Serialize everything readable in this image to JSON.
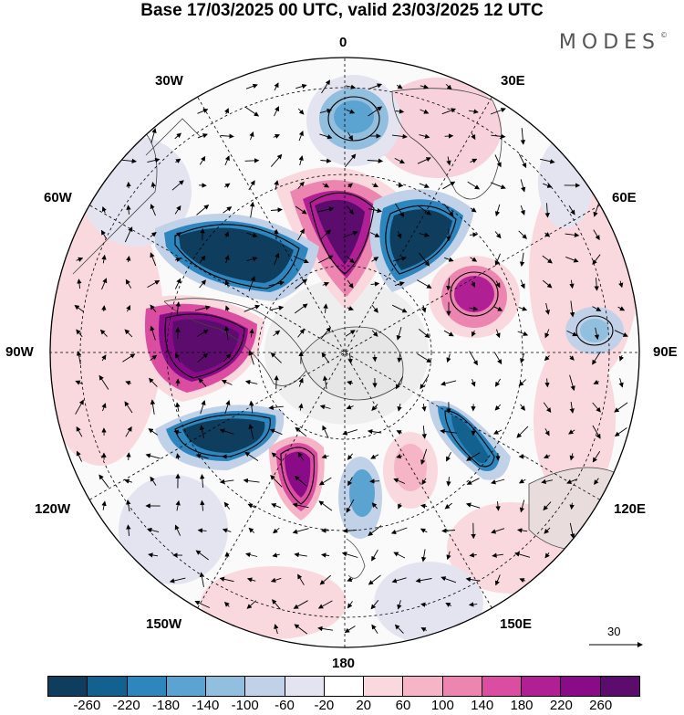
{
  "title": "Base 17/03/2025 00 UTC, valid 23/03/2025 12 UTC",
  "brand": {
    "name": "MODES",
    "mark": "©"
  },
  "longitude_labels": {
    "north": "0",
    "n30w": "30W",
    "n30e": "30E",
    "n60w": "60W",
    "n60e": "60E",
    "west": "90W",
    "east": "90E",
    "n120w": "120W",
    "n120e": "120E",
    "n150w": "150W",
    "n150e": "150E",
    "south": "180"
  },
  "reference_vector": {
    "label": "30"
  },
  "colorbar": {
    "ticks": [
      "-260",
      "-220",
      "-180",
      "-140",
      "-100",
      "-60",
      "-20",
      "20",
      "60",
      "100",
      "140",
      "180",
      "220",
      "260"
    ],
    "colors": [
      "#0e3d5e",
      "#13618f",
      "#2d86bd",
      "#5ba3d1",
      "#93bfdf",
      "#c0d1e8",
      "#e4e4f1",
      "#ffffff",
      "#f9d9de",
      "#f5b5c6",
      "#ec86b0",
      "#db4da0",
      "#b01f94",
      "#8a0b87",
      "#5b0c6c"
    ]
  }
}
